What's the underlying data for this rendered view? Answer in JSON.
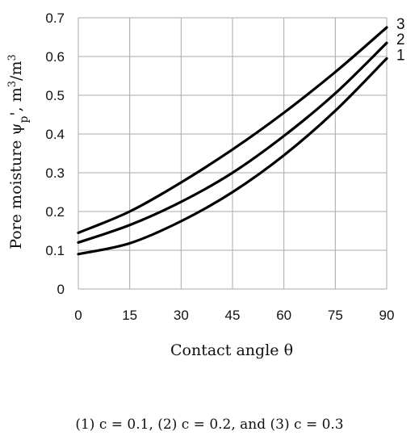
{
  "chart_data": {
    "type": "line",
    "title": "",
    "xlabel": "Contact angle θ",
    "ylabel_main": "Pore moisture ψ",
    "ylabel_sub": "p",
    "ylabel_prime": "'",
    "ylabel_unit": ", m",
    "ylabel_exp1": "3",
    "ylabel_slash": "/m",
    "ylabel_exp2": "3",
    "xlim": [
      0,
      90
    ],
    "ylim": [
      0,
      0.7
    ],
    "xticks": [
      "0",
      "15",
      "30",
      "45",
      "60",
      "75",
      "90"
    ],
    "yticks": [
      "0",
      "0.1",
      "0.2",
      "0.3",
      "0.4",
      "0.5",
      "0.6",
      "0.7"
    ],
    "grid": true,
    "x": [
      0,
      15,
      30,
      45,
      60,
      75,
      90
    ],
    "series": [
      {
        "name": "1",
        "values": [
          0.09,
          0.118,
          0.175,
          0.25,
          0.345,
          0.46,
          0.595
        ]
      },
      {
        "name": "2",
        "values": [
          0.12,
          0.165,
          0.225,
          0.3,
          0.395,
          0.505,
          0.635
        ]
      },
      {
        "name": "3",
        "values": [
          0.145,
          0.2,
          0.275,
          0.36,
          0.455,
          0.56,
          0.675
        ]
      }
    ],
    "caption": "(1) c = 0.1, (2) c = 0.2, and (3) c = 0.3"
  }
}
